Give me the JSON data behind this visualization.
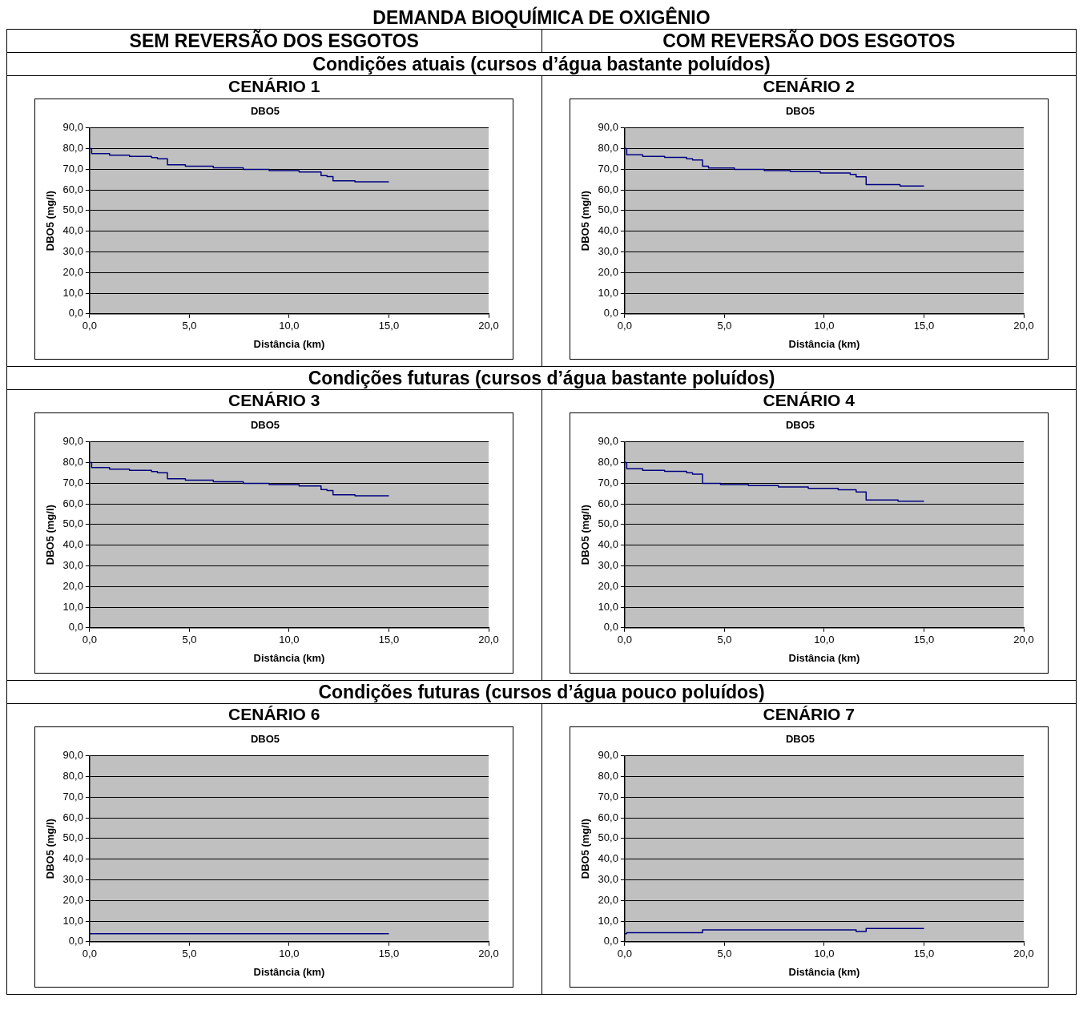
{
  "chart_data": [
    {
      "type": "step",
      "title": "CENÁRIO 1",
      "subtitle": "DBO5",
      "xlabel": "Distância (km)",
      "ylabel": "DBO5 (mg/l)",
      "annotations": [
        "DEMANDA BIOQUÍMICA DE OXIGÊNIO",
        "SEM REVERSÃO DOS ESGOTOS",
        "Condições atuais (cursos d’água bastante poluídos)"
      ],
      "x": [
        0,
        0.1,
        1.0,
        2.0,
        3.1,
        3.4,
        3.9,
        4.8,
        6.2,
        7.7,
        9.0,
        10.5,
        11.6,
        11.9,
        12.2,
        13.3,
        15.0
      ],
      "values": [
        80,
        77.5,
        76.8,
        76.2,
        75.6,
        75.0,
        72.1,
        71.4,
        70.7,
        69.9,
        69.3,
        68.6,
        66.9,
        66.4,
        64.4,
        63.9,
        63.9
      ],
      "color": "#000080",
      "marker": "none",
      "grid": "y",
      "legend": false,
      "xlim": [
        0,
        20
      ],
      "xticks": [
        {
          "value": 0,
          "label": "0,0"
        },
        {
          "value": 5,
          "label": "5,0"
        },
        {
          "value": 10,
          "label": "10,0"
        },
        {
          "value": 15,
          "label": "15,0"
        },
        {
          "value": 20,
          "label": "20,0"
        }
      ],
      "ylim": [
        0,
        90
      ],
      "yticks": [
        {
          "value": 0,
          "label": "0,0"
        },
        {
          "value": 10,
          "label": "10,0"
        },
        {
          "value": 20,
          "label": "20,0"
        },
        {
          "value": 30,
          "label": "30,0"
        },
        {
          "value": 40,
          "label": "40,0"
        },
        {
          "value": 50,
          "label": "50,0"
        },
        {
          "value": 60,
          "label": "60,0"
        },
        {
          "value": 70,
          "label": "70,0"
        },
        {
          "value": 80,
          "label": "80,0"
        },
        {
          "value": 90,
          "label": "90,0"
        }
      ]
    },
    {
      "type": "step",
      "title": "CENÁRIO 2",
      "subtitle": "DBO5",
      "xlabel": "Distância (km)",
      "ylabel": "DBO5 (mg/l)",
      "annotations": [
        "COM REVERSÃO DOS ESGOTOS"
      ],
      "x": [
        0,
        0.1,
        0.9,
        2.0,
        3.1,
        3.4,
        3.9,
        4.2,
        5.5,
        7.0,
        8.3,
        9.8,
        11.3,
        11.6,
        12.1,
        13.8,
        15.0
      ],
      "values": [
        80,
        77.0,
        76.2,
        75.7,
        75.0,
        74.4,
        71.4,
        70.6,
        69.9,
        69.3,
        68.8,
        68.1,
        67.5,
        66.3,
        62.5,
        61.8,
        61.8
      ],
      "color": "#000080",
      "marker": "none",
      "grid": "y",
      "legend": false,
      "xlim": [
        0,
        20
      ],
      "xticks": [
        {
          "value": 0,
          "label": "0,0"
        },
        {
          "value": 5,
          "label": "5,0"
        },
        {
          "value": 10,
          "label": "10,0"
        },
        {
          "value": 15,
          "label": "15,0"
        },
        {
          "value": 20,
          "label": "20,0"
        }
      ],
      "ylim": [
        0,
        90
      ],
      "yticks": [
        {
          "value": 0,
          "label": "0,0"
        },
        {
          "value": 10,
          "label": "10,0"
        },
        {
          "value": 20,
          "label": "20,0"
        },
        {
          "value": 30,
          "label": "30,0"
        },
        {
          "value": 40,
          "label": "40,0"
        },
        {
          "value": 50,
          "label": "50,0"
        },
        {
          "value": 60,
          "label": "60,0"
        },
        {
          "value": 70,
          "label": "70,0"
        },
        {
          "value": 80,
          "label": "80,0"
        },
        {
          "value": 90,
          "label": "90,0"
        }
      ]
    },
    {
      "type": "step",
      "title": "CENÁRIO 3",
      "subtitle": "DBO5",
      "xlabel": "Distância (km)",
      "ylabel": "DBO5 (mg/l)",
      "annotations": [
        "Condições futuras (cursos d’água bastante poluídos)"
      ],
      "x": [
        0,
        0.1,
        1.0,
        2.0,
        3.1,
        3.4,
        3.9,
        4.8,
        6.2,
        7.7,
        9.0,
        10.5,
        11.6,
        11.9,
        12.2,
        13.3,
        15.0
      ],
      "values": [
        80,
        77.5,
        76.8,
        76.2,
        75.6,
        75.0,
        72.1,
        71.4,
        70.7,
        69.9,
        69.3,
        68.6,
        66.9,
        66.4,
        64.4,
        63.9,
        63.9
      ],
      "color": "#000080",
      "marker": "none",
      "grid": "y",
      "legend": false,
      "xlim": [
        0,
        20
      ],
      "xticks": [
        {
          "value": 0,
          "label": "0,0"
        },
        {
          "value": 5,
          "label": "5,0"
        },
        {
          "value": 10,
          "label": "10,0"
        },
        {
          "value": 15,
          "label": "15,0"
        },
        {
          "value": 20,
          "label": "20,0"
        }
      ],
      "ylim": [
        0,
        90
      ],
      "yticks": [
        {
          "value": 0,
          "label": "0,0"
        },
        {
          "value": 10,
          "label": "10,0"
        },
        {
          "value": 20,
          "label": "20,0"
        },
        {
          "value": 30,
          "label": "30,0"
        },
        {
          "value": 40,
          "label": "40,0"
        },
        {
          "value": 50,
          "label": "50,0"
        },
        {
          "value": 60,
          "label": "60,0"
        },
        {
          "value": 70,
          "label": "70,0"
        },
        {
          "value": 80,
          "label": "80,0"
        },
        {
          "value": 90,
          "label": "90,0"
        }
      ]
    },
    {
      "type": "step",
      "title": "CENÁRIO 4",
      "subtitle": "DBO5",
      "xlabel": "Distância (km)",
      "ylabel": "DBO5 (mg/l)",
      "x": [
        0,
        0.1,
        0.9,
        2.0,
        3.1,
        3.4,
        3.9,
        4.8,
        6.2,
        7.7,
        9.2,
        10.7,
        11.6,
        12.1,
        13.7,
        15.0
      ],
      "values": [
        80,
        77.0,
        76.2,
        75.7,
        75.0,
        74.3,
        69.9,
        69.3,
        68.8,
        68.1,
        67.5,
        66.8,
        65.7,
        61.8,
        61.3,
        61.3
      ],
      "color": "#000080",
      "marker": "none",
      "grid": "y",
      "legend": false,
      "xlim": [
        0,
        20
      ],
      "xticks": [
        {
          "value": 0,
          "label": "0,0"
        },
        {
          "value": 5,
          "label": "5,0"
        },
        {
          "value": 10,
          "label": "10,0"
        },
        {
          "value": 15,
          "label": "15,0"
        },
        {
          "value": 20,
          "label": "20,0"
        }
      ],
      "ylim": [
        0,
        90
      ],
      "yticks": [
        {
          "value": 0,
          "label": "0,0"
        },
        {
          "value": 10,
          "label": "10,0"
        },
        {
          "value": 20,
          "label": "20,0"
        },
        {
          "value": 30,
          "label": "30,0"
        },
        {
          "value": 40,
          "label": "40,0"
        },
        {
          "value": 50,
          "label": "50,0"
        },
        {
          "value": 60,
          "label": "60,0"
        },
        {
          "value": 70,
          "label": "70,0"
        },
        {
          "value": 80,
          "label": "80,0"
        },
        {
          "value": 90,
          "label": "90,0"
        }
      ]
    },
    {
      "type": "step",
      "title": "CENÁRIO 6",
      "subtitle": "DBO5",
      "xlabel": "Distância (km)",
      "ylabel": "DBO5 (mg/l)",
      "annotations": [
        "Condições futuras (cursos d’água pouco poluídos)"
      ],
      "x": [
        0,
        15.0
      ],
      "values": [
        3.9,
        3.9
      ],
      "color": "#000080",
      "marker": "none",
      "grid": "y",
      "legend": false,
      "xlim": [
        0,
        20
      ],
      "xticks": [
        {
          "value": 0,
          "label": "0,0"
        },
        {
          "value": 5,
          "label": "5,0"
        },
        {
          "value": 10,
          "label": "10,0"
        },
        {
          "value": 15,
          "label": "15,0"
        },
        {
          "value": 20,
          "label": "20,0"
        }
      ],
      "ylim": [
        0,
        90
      ],
      "yticks": [
        {
          "value": 0,
          "label": "0,0"
        },
        {
          "value": 10,
          "label": "10,0"
        },
        {
          "value": 20,
          "label": "20,0"
        },
        {
          "value": 30,
          "label": "30,0"
        },
        {
          "value": 40,
          "label": "40,0"
        },
        {
          "value": 50,
          "label": "50,0"
        },
        {
          "value": 60,
          "label": "60,0"
        },
        {
          "value": 70,
          "label": "70,0"
        },
        {
          "value": 80,
          "label": "80,0"
        },
        {
          "value": 90,
          "label": "90,0"
        }
      ]
    },
    {
      "type": "step",
      "title": "CENÁRIO 7",
      "subtitle": "DBO5",
      "xlabel": "Distância (km)",
      "ylabel": "DBO5 (mg/l)",
      "x": [
        0,
        0.1,
        3.9,
        11.6,
        12.1,
        15.0
      ],
      "values": [
        3.9,
        4.4,
        5.7,
        5.0,
        6.4,
        6.4
      ],
      "color": "#000080",
      "marker": "none",
      "grid": "y",
      "legend": false,
      "xlim": [
        0,
        20
      ],
      "xticks": [
        {
          "value": 0,
          "label": "0,0"
        },
        {
          "value": 5,
          "label": "5,0"
        },
        {
          "value": 10,
          "label": "10,0"
        },
        {
          "value": 15,
          "label": "15,0"
        },
        {
          "value": 20,
          "label": "20,0"
        }
      ],
      "ylim": [
        0,
        90
      ],
      "yticks": [
        {
          "value": 0,
          "label": "0,0"
        },
        {
          "value": 10,
          "label": "10,0"
        },
        {
          "value": 20,
          "label": "20,0"
        },
        {
          "value": 30,
          "label": "30,0"
        },
        {
          "value": 40,
          "label": "40,0"
        },
        {
          "value": 50,
          "label": "50,0"
        },
        {
          "value": 60,
          "label": "60,0"
        },
        {
          "value": 70,
          "label": "70,0"
        },
        {
          "value": 80,
          "label": "80,0"
        },
        {
          "value": 90,
          "label": "90,0"
        }
      ]
    }
  ]
}
